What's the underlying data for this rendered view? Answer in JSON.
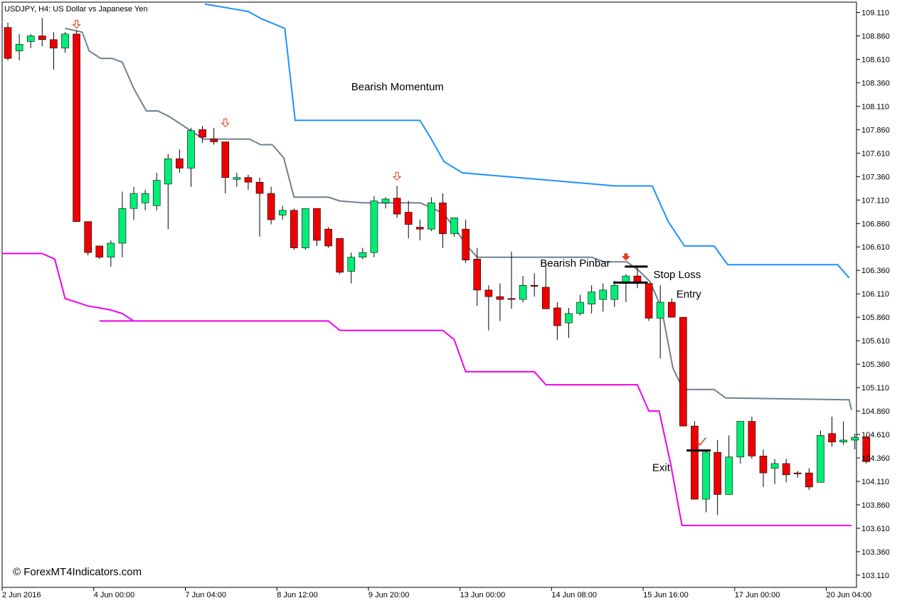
{
  "header": {
    "title": "USDJPY, H4:  US Dollar vs Japanese Yen"
  },
  "watermark": "© ForexMT4Indicators.com",
  "annotations": {
    "bearish_momentum": "Bearish Momentum",
    "bearish_pinbar": "Bearish Pinbar",
    "stop_loss": "Stop Loss",
    "entry": "Entry",
    "exit": "Exit"
  },
  "colors": {
    "background": "#ffffff",
    "bull_candle": "#00ee76",
    "bear_candle": "#ee0000",
    "wick": "#000000",
    "upper_band": "#1e90ff",
    "middle_band": "#708090",
    "lower_band": "#ee00ee",
    "signal_arrow": "#e03c1e",
    "check_mark": "#e03c1e"
  },
  "chart_data": {
    "type": "candlestick",
    "symbol": "USDJPY",
    "timeframe": "H4",
    "ylim": [
      102.98,
      109.22
    ],
    "y_ticks": [
      109.11,
      108.86,
      108.61,
      108.36,
      108.11,
      107.86,
      107.61,
      107.36,
      107.11,
      106.86,
      106.61,
      106.36,
      106.11,
      105.86,
      105.61,
      105.36,
      105.11,
      104.86,
      104.61,
      104.36,
      104.11,
      103.86,
      103.61,
      103.36,
      103.11
    ],
    "x_ticks": [
      {
        "bar": 0,
        "label": "2 Jun 2016"
      },
      {
        "bar": 8,
        "label": "4 Jun 00:00"
      },
      {
        "bar": 16,
        "label": "7 Jun 04:00"
      },
      {
        "bar": 24,
        "label": "8 Jun 12:00"
      },
      {
        "bar": 32,
        "label": "9 Jun 20:00"
      },
      {
        "bar": 40,
        "label": "13 Jun 00:00"
      },
      {
        "bar": 48,
        "label": "14 Jun 08:00"
      },
      {
        "bar": 56,
        "label": "15 Jun 16:00"
      },
      {
        "bar": 64,
        "label": "17 Jun 00:00"
      },
      {
        "bar": 72,
        "label": "20 Jun 04:00"
      }
    ],
    "candles": [
      {
        "o": 108.95,
        "h": 109.0,
        "l": 108.6,
        "c": 108.62
      },
      {
        "o": 108.7,
        "h": 108.88,
        "l": 108.6,
        "c": 108.77
      },
      {
        "o": 108.8,
        "h": 108.88,
        "l": 108.73,
        "c": 108.86
      },
      {
        "o": 108.86,
        "h": 109.05,
        "l": 108.75,
        "c": 108.82
      },
      {
        "o": 108.82,
        "h": 108.9,
        "l": 108.5,
        "c": 108.73
      },
      {
        "o": 108.73,
        "h": 108.9,
        "l": 108.68,
        "c": 108.88
      },
      {
        "o": 108.88,
        "h": 108.92,
        "l": 106.88,
        "c": 106.88
      },
      {
        "o": 106.88,
        "h": 106.88,
        "l": 106.52,
        "c": 106.55
      },
      {
        "o": 106.62,
        "h": 106.62,
        "l": 106.48,
        "c": 106.5
      },
      {
        "o": 106.5,
        "h": 106.68,
        "l": 106.4,
        "c": 106.65
      },
      {
        "o": 106.65,
        "h": 107.2,
        "l": 106.5,
        "c": 107.02
      },
      {
        "o": 107.02,
        "h": 107.25,
        "l": 106.9,
        "c": 107.18
      },
      {
        "o": 107.08,
        "h": 107.22,
        "l": 107.0,
        "c": 107.18
      },
      {
        "o": 107.05,
        "h": 107.4,
        "l": 107.0,
        "c": 107.32
      },
      {
        "o": 107.28,
        "h": 107.6,
        "l": 106.8,
        "c": 107.55
      },
      {
        "o": 107.55,
        "h": 107.65,
        "l": 107.4,
        "c": 107.45
      },
      {
        "o": 107.45,
        "h": 107.88,
        "l": 107.25,
        "c": 107.85
      },
      {
        "o": 107.86,
        "h": 107.9,
        "l": 107.72,
        "c": 107.78
      },
      {
        "o": 107.76,
        "h": 107.88,
        "l": 107.7,
        "c": 107.73
      },
      {
        "o": 107.73,
        "h": 107.73,
        "l": 107.18,
        "c": 107.35
      },
      {
        "o": 107.33,
        "h": 107.4,
        "l": 107.25,
        "c": 107.35
      },
      {
        "o": 107.35,
        "h": 107.38,
        "l": 107.22,
        "c": 107.3
      },
      {
        "o": 107.3,
        "h": 107.35,
        "l": 106.72,
        "c": 107.18
      },
      {
        "o": 107.18,
        "h": 107.25,
        "l": 106.85,
        "c": 106.9
      },
      {
        "o": 106.95,
        "h": 107.05,
        "l": 106.9,
        "c": 107.0
      },
      {
        "o": 107.0,
        "h": 107.02,
        "l": 106.58,
        "c": 106.6
      },
      {
        "o": 106.6,
        "h": 107.02,
        "l": 106.58,
        "c": 107.02
      },
      {
        "o": 107.02,
        "h": 107.02,
        "l": 106.62,
        "c": 106.68
      },
      {
        "o": 106.8,
        "h": 106.82,
        "l": 106.6,
        "c": 106.62
      },
      {
        "o": 106.7,
        "h": 106.7,
        "l": 106.32,
        "c": 106.34
      },
      {
        "o": 106.35,
        "h": 106.55,
        "l": 106.22,
        "c": 106.5
      },
      {
        "o": 106.5,
        "h": 106.6,
        "l": 106.48,
        "c": 106.55
      },
      {
        "o": 106.55,
        "h": 107.15,
        "l": 106.5,
        "c": 107.1
      },
      {
        "o": 107.08,
        "h": 107.14,
        "l": 107.02,
        "c": 107.12
      },
      {
        "o": 107.13,
        "h": 107.26,
        "l": 106.92,
        "c": 106.96
      },
      {
        "o": 106.98,
        "h": 107.1,
        "l": 106.7,
        "c": 106.85
      },
      {
        "o": 106.82,
        "h": 106.9,
        "l": 106.68,
        "c": 106.8
      },
      {
        "o": 106.8,
        "h": 107.14,
        "l": 106.78,
        "c": 107.08
      },
      {
        "o": 107.08,
        "h": 107.18,
        "l": 106.6,
        "c": 106.75
      },
      {
        "o": 106.75,
        "h": 106.92,
        "l": 106.72,
        "c": 106.92
      },
      {
        "o": 106.8,
        "h": 106.9,
        "l": 106.44,
        "c": 106.47
      },
      {
        "o": 106.48,
        "h": 106.6,
        "l": 105.98,
        "c": 106.15
      },
      {
        "o": 106.15,
        "h": 106.2,
        "l": 105.72,
        "c": 106.08
      },
      {
        "o": 106.08,
        "h": 106.22,
        "l": 105.82,
        "c": 106.05
      },
      {
        "o": 106.06,
        "h": 106.56,
        "l": 105.95,
        "c": 106.05
      },
      {
        "o": 106.05,
        "h": 106.3,
        "l": 106.02,
        "c": 106.2
      },
      {
        "o": 106.2,
        "h": 106.33,
        "l": 106.08,
        "c": 106.19
      },
      {
        "o": 106.18,
        "h": 106.44,
        "l": 105.96,
        "c": 105.95
      },
      {
        "o": 105.96,
        "h": 106.02,
        "l": 105.62,
        "c": 105.77
      },
      {
        "o": 105.8,
        "h": 105.96,
        "l": 105.64,
        "c": 105.9
      },
      {
        "o": 105.9,
        "h": 106.1,
        "l": 105.88,
        "c": 106.02
      },
      {
        "o": 106.0,
        "h": 106.2,
        "l": 105.9,
        "c": 106.13
      },
      {
        "o": 106.05,
        "h": 106.22,
        "l": 105.92,
        "c": 106.15
      },
      {
        "o": 106.05,
        "h": 106.25,
        "l": 105.97,
        "c": 106.2
      },
      {
        "o": 106.22,
        "h": 106.32,
        "l": 106.02,
        "c": 106.3
      },
      {
        "o": 106.3,
        "h": 106.4,
        "l": 106.17,
        "c": 106.22
      },
      {
        "o": 106.22,
        "h": 106.22,
        "l": 105.82,
        "c": 105.85
      },
      {
        "o": 105.85,
        "h": 106.2,
        "l": 105.42,
        "c": 106.02
      },
      {
        "o": 106.02,
        "h": 106.06,
        "l": 105.86,
        "c": 105.86
      },
      {
        "o": 105.86,
        "h": 105.86,
        "l": 104.7,
        "c": 104.7
      },
      {
        "o": 104.7,
        "h": 104.75,
        "l": 103.92,
        "c": 103.92
      },
      {
        "o": 103.92,
        "h": 104.45,
        "l": 103.78,
        "c": 104.42
      },
      {
        "o": 104.42,
        "h": 104.55,
        "l": 103.75,
        "c": 103.97
      },
      {
        "o": 103.97,
        "h": 104.6,
        "l": 103.97,
        "c": 104.37
      },
      {
        "o": 104.37,
        "h": 104.75,
        "l": 104.3,
        "c": 104.75
      },
      {
        "o": 104.75,
        "h": 104.8,
        "l": 104.35,
        "c": 104.38
      },
      {
        "o": 104.38,
        "h": 104.45,
        "l": 104.05,
        "c": 104.2
      },
      {
        "o": 104.25,
        "h": 104.35,
        "l": 104.08,
        "c": 104.3
      },
      {
        "o": 104.3,
        "h": 104.35,
        "l": 104.1,
        "c": 104.18
      },
      {
        "o": 104.2,
        "h": 104.22,
        "l": 104.15,
        "c": 104.19
      },
      {
        "o": 104.2,
        "h": 104.25,
        "l": 104.02,
        "c": 104.05
      },
      {
        "o": 104.1,
        "h": 104.65,
        "l": 104.1,
        "c": 104.6
      },
      {
        "o": 104.62,
        "h": 104.8,
        "l": 104.48,
        "c": 104.53
      },
      {
        "o": 104.53,
        "h": 104.75,
        "l": 104.5,
        "c": 104.55
      },
      {
        "o": 104.55,
        "h": 104.62,
        "l": 104.45,
        "c": 104.58
      },
      {
        "o": 104.58,
        "h": 104.6,
        "l": 104.3,
        "c": 104.32
      }
    ],
    "series": [
      {
        "role": "upper",
        "points": [
          [
            17.7,
            109.2
          ],
          [
            21.5,
            109.12
          ],
          [
            22.7,
            109.04
          ],
          [
            24.7,
            108.94
          ],
          [
            25.6,
            107.96
          ],
          [
            36.5,
            107.96
          ],
          [
            37.4,
            107.78
          ],
          [
            38.6,
            107.52
          ],
          [
            40.2,
            107.4
          ],
          [
            53.6,
            107.26
          ],
          [
            56.8,
            107.26
          ],
          [
            58.2,
            106.88
          ],
          [
            59.6,
            106.62
          ],
          [
            62.2,
            106.62
          ],
          [
            63.4,
            106.42
          ],
          [
            73.0,
            106.42
          ],
          [
            74.0,
            106.28
          ]
        ]
      },
      {
        "role": "middle",
        "points": [
          [
            5.5,
            108.94
          ],
          [
            7.0,
            108.9
          ],
          [
            7.6,
            108.7
          ],
          [
            8.6,
            108.62
          ],
          [
            9.6,
            108.62
          ],
          [
            10.5,
            108.58
          ],
          [
            11.5,
            108.3
          ],
          [
            12.6,
            108.06
          ],
          [
            13.6,
            108.06
          ],
          [
            14.6,
            108.0
          ],
          [
            15.6,
            107.92
          ],
          [
            17.6,
            107.76
          ],
          [
            21.6,
            107.76
          ],
          [
            22.6,
            107.7
          ],
          [
            23.6,
            107.7
          ],
          [
            24.6,
            107.56
          ],
          [
            25.5,
            107.14
          ],
          [
            28.5,
            107.14
          ],
          [
            29.5,
            107.1
          ],
          [
            31.5,
            107.08
          ],
          [
            36.5,
            107.08
          ],
          [
            37.5,
            107.03
          ],
          [
            38.6,
            106.96
          ],
          [
            39.6,
            106.8
          ],
          [
            40.5,
            106.64
          ],
          [
            41.5,
            106.5
          ],
          [
            51.5,
            106.5
          ],
          [
            52.6,
            106.45
          ],
          [
            54.6,
            106.45
          ],
          [
            55.6,
            106.36
          ],
          [
            56.6,
            106.24
          ],
          [
            57.6,
            105.96
          ],
          [
            58.6,
            105.32
          ],
          [
            59.5,
            105.09
          ],
          [
            62.2,
            105.09
          ],
          [
            63.2,
            105.0
          ],
          [
            74.0,
            104.98
          ],
          [
            74.2,
            104.87
          ]
        ]
      },
      {
        "role": "lower",
        "points": [
          [
            0.0,
            106.54
          ],
          [
            3.5,
            106.54
          ],
          [
            4.6,
            106.48
          ],
          [
            5.5,
            106.06
          ],
          [
            6.5,
            106.02
          ],
          [
            7.5,
            105.98
          ],
          [
            8.5,
            105.96
          ],
          [
            9.4,
            105.94
          ],
          [
            10.5,
            105.9
          ],
          [
            11.5,
            105.82
          ],
          [
            8.5,
            105.82
          ],
          [
            9.1,
            105.82
          ],
          [
            18.5,
            105.82
          ],
          [
            28.5,
            105.82
          ],
          [
            29.5,
            105.72
          ],
          [
            38.5,
            105.72
          ],
          [
            39.5,
            105.62
          ],
          [
            40.5,
            105.28
          ],
          [
            46.5,
            105.28
          ],
          [
            47.5,
            105.14
          ],
          [
            55.5,
            105.14
          ],
          [
            56.5,
            104.86
          ],
          [
            57.4,
            104.86
          ],
          [
            58.4,
            104.3
          ],
          [
            59.4,
            103.64
          ],
          [
            74.2,
            103.64
          ]
        ]
      }
    ],
    "signal_arrows": [
      {
        "bar": 6,
        "y": 108.98,
        "style": "hollow"
      },
      {
        "bar": 19,
        "y": 107.93,
        "style": "hollow"
      },
      {
        "bar": 34,
        "y": 107.36,
        "style": "hollow"
      },
      {
        "bar": 54,
        "y": 106.5,
        "style": "solid"
      }
    ],
    "levels": [
      {
        "name": "stop_loss",
        "x1": 53.9,
        "x2": 55.9,
        "y": 106.4
      },
      {
        "name": "entry",
        "x1": 52.9,
        "x2": 55.9,
        "y": 106.23
      },
      {
        "name": "exit",
        "x1": 59.3,
        "x2": 61.4,
        "y": 104.44
      }
    ],
    "check_mark": {
      "bar": 60.6,
      "y": 104.53
    },
    "annotation_positions": {
      "bearish_momentum": {
        "bar": 30.0,
        "y": 108.28
      },
      "bearish_pinbar": {
        "bar": 46.5,
        "y": 106.4
      },
      "stop_loss": {
        "bar": 56.4,
        "y": 106.28
      },
      "entry": {
        "bar": 58.4,
        "y": 106.07
      },
      "exit": {
        "bar": 56.3,
        "y": 104.22
      }
    },
    "grid": false,
    "legend": "none"
  }
}
